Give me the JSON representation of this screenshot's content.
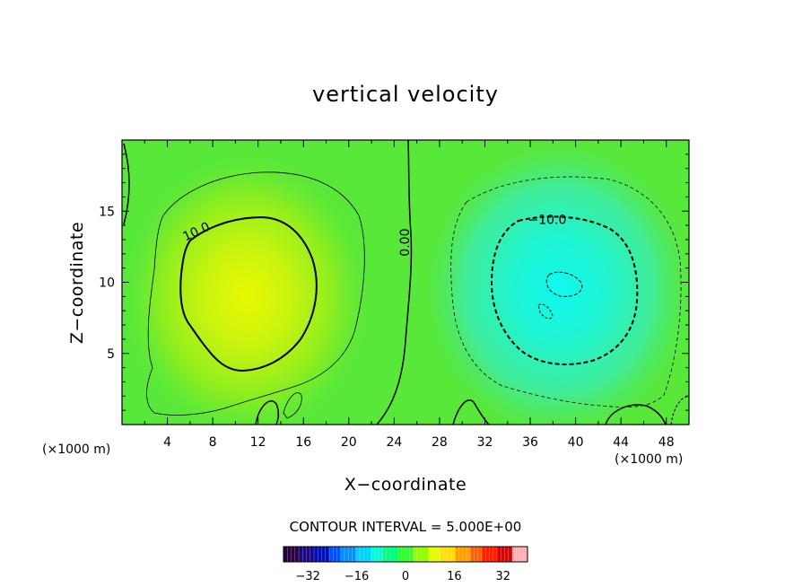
{
  "chart_data": {
    "type": "contour",
    "title": "vertical velocity",
    "xlabel": "X−coordinate",
    "ylabel": "Z−coordinate",
    "x_unit": "(×1000 m)",
    "y_unit": "(×1000 m)",
    "xlim": [
      0,
      50
    ],
    "ylim": [
      0,
      20
    ],
    "x_ticks": [
      4,
      8,
      12,
      16,
      20,
      24,
      28,
      32,
      36,
      40,
      44,
      48
    ],
    "x_tick_labels": [
      "4",
      "8",
      "12",
      "16",
      "20",
      "24",
      "28",
      "32",
      "36",
      "40",
      "44",
      "48"
    ],
    "y_ticks": [
      5,
      10,
      15
    ],
    "y_tick_labels": [
      "5",
      "10",
      "15"
    ],
    "updraft": {
      "center": [
        11,
        9
      ],
      "peak": 22
    },
    "downdraft": {
      "center": [
        38.5,
        9.5
      ],
      "peak": -22
    },
    "contour_labels": [
      {
        "text": "10.0",
        "x": 6.7,
        "y": 13.3,
        "angle": -25
      },
      {
        "text": "0.00",
        "x": 25.3,
        "y": 12.8,
        "angle": -90
      },
      {
        "text": "−10.0",
        "x": 37.5,
        "y": 14.1,
        "angle": 0
      }
    ],
    "contour_interval_text": "CONTOUR INTERVAL = 5.000E+00",
    "colorbar": {
      "range": [
        -40,
        40
      ],
      "ticks": [
        -32,
        -16,
        0,
        16,
        32
      ],
      "tick_labels": [
        "−32",
        "−16",
        "0",
        "16",
        "32"
      ],
      "colors": [
        "#2a0040",
        "#1a0a80",
        "#0010c0",
        "#0050ff",
        "#0090ff",
        "#00d0ff",
        "#00ffd8",
        "#00ff80",
        "#30ff30",
        "#90ff00",
        "#e0ff00",
        "#ffe000",
        "#ffa000",
        "#ff6000",
        "#ff2000",
        "#e00000",
        "#ffb0b0"
      ]
    }
  }
}
